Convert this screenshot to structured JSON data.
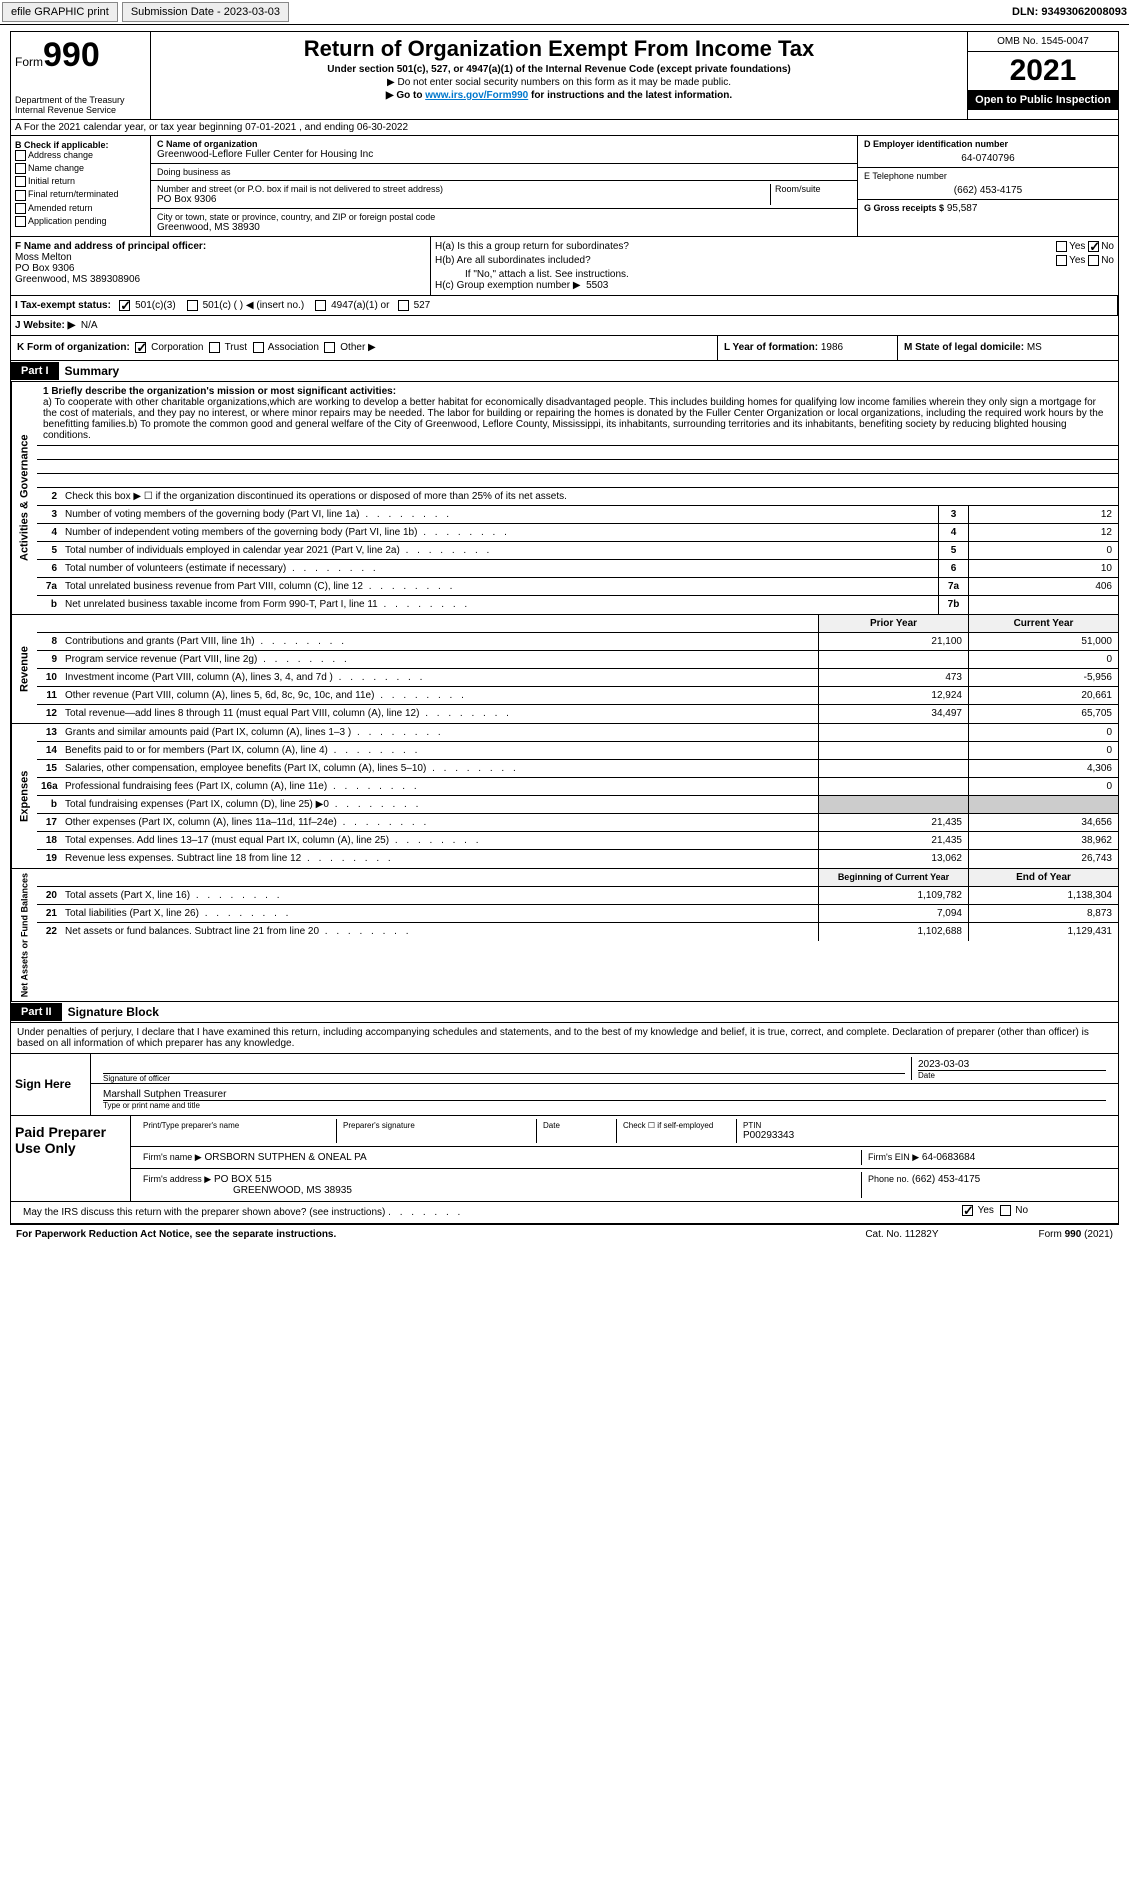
{
  "top": {
    "efile": "efile GRAPHIC print",
    "sub_label": "Submission Date - 2023-03-03",
    "dln": "DLN: 93493062008093"
  },
  "header": {
    "form_word": "Form",
    "form_num": "990",
    "dept": "Department of the Treasury",
    "irs": "Internal Revenue Service",
    "title": "Return of Organization Exempt From Income Tax",
    "sub1": "Under section 501(c), 527, or 4947(a)(1) of the Internal Revenue Code (except private foundations)",
    "sub2": "▶ Do not enter social security numbers on this form as it may be made public.",
    "sub3_pre": "▶ Go to ",
    "sub3_link": "www.irs.gov/Form990",
    "sub3_post": " for instructions and the latest information.",
    "omb": "OMB No. 1545-0047",
    "year": "2021",
    "inspect": "Open to Public Inspection"
  },
  "rowA": "A For the 2021 calendar year, or tax year beginning 07-01-2021   , and ending 06-30-2022",
  "colB": {
    "label": "B Check if applicable:",
    "items": [
      "Address change",
      "Name change",
      "Initial return",
      "Final return/terminated",
      "Amended return",
      "Application pending"
    ]
  },
  "colC": {
    "name_label": "C Name of organization",
    "name": "Greenwood-Leflore Fuller Center for Housing Inc",
    "dba_label": "Doing business as",
    "dba": "",
    "street_label": "Number and street (or P.O. box if mail is not delivered to street address)",
    "street": "PO Box 9306",
    "room_label": "Room/suite",
    "room": "",
    "city_label": "City or town, state or province, country, and ZIP or foreign postal code",
    "city": "Greenwood, MS  38930"
  },
  "colD": {
    "ein_label": "D Employer identification number",
    "ein": "64-0740796",
    "phone_label": "E Telephone number",
    "phone": "(662) 453-4175",
    "gross_label": "G Gross receipts $",
    "gross": "95,587"
  },
  "colF": {
    "label": "F  Name and address of principal officer:",
    "name": "Moss Melton",
    "street": "PO Box 9306",
    "city": "Greenwood, MS  389308906"
  },
  "colH": {
    "a_label": "H(a)  Is this a group return for subordinates?",
    "a_yes": "Yes",
    "a_no": "No",
    "b_label": "H(b)  Are all subordinates included?",
    "b_yes": "Yes",
    "b_no": "No",
    "b_note": "If \"No,\" attach a list. See instructions.",
    "c_label": "H(c)  Group exemption number ▶",
    "c_val": "5503"
  },
  "taxI": {
    "label": "I  Tax-exempt status:",
    "opt1": "501(c)(3)",
    "opt2": "501(c) (   ) ◀ (insert no.)",
    "opt3": "4947(a)(1) or",
    "opt4": "527"
  },
  "rowJ": {
    "label": "J  Website: ▶",
    "val": "N/A"
  },
  "rowK": {
    "label": "K Form of organization:",
    "opts": [
      "Corporation",
      "Trust",
      "Association",
      "Other ▶"
    ]
  },
  "rowL": {
    "label": "L Year of formation:",
    "val": "1986"
  },
  "rowM": {
    "label": "M State of legal domicile:",
    "val": "MS"
  },
  "part1": {
    "hdr": "Part I",
    "title": "Summary"
  },
  "mission": {
    "label": "1  Briefly describe the organization's mission or most significant activities:",
    "text": "a) To cooperate with other charitable organizations,which are working to develop a better habitat for economically disadvantaged people. This includes building homes for qualifying low income families wherein they only sign a mortgage for the cost of materials, and they pay no interest, or where minor repairs may be needed. The labor for building or repairing the homes is donated by the Fuller Center Organization or local organizations, including the required work hours by the benefitting families.b) To promote the common good and general welfare of the City of Greenwood, Leflore County, Mississippi, its inhabitants, surrounding territories and its inhabitants, benefiting society by reducing blighted housing conditions."
  },
  "governance": {
    "side": "Activities & Governance",
    "line2": "Check this box ▶ ☐ if the organization discontinued its operations or disposed of more than 25% of its net assets.",
    "rows": [
      {
        "n": "3",
        "d": "Number of voting members of the governing body (Part VI, line 1a)",
        "box": "3",
        "v": "12"
      },
      {
        "n": "4",
        "d": "Number of independent voting members of the governing body (Part VI, line 1b)",
        "box": "4",
        "v": "12"
      },
      {
        "n": "5",
        "d": "Total number of individuals employed in calendar year 2021 (Part V, line 2a)",
        "box": "5",
        "v": "0"
      },
      {
        "n": "6",
        "d": "Total number of volunteers (estimate if necessary)",
        "box": "6",
        "v": "10"
      },
      {
        "n": "7a",
        "d": "Total unrelated business revenue from Part VIII, column (C), line 12",
        "box": "7a",
        "v": "406"
      },
      {
        "n": "b",
        "d": "Net unrelated business taxable income from Form 990-T, Part I, line 11",
        "box": "7b",
        "v": ""
      }
    ]
  },
  "revenue": {
    "side": "Revenue",
    "hdr_prior": "Prior Year",
    "hdr_curr": "Current Year",
    "rows": [
      {
        "n": "8",
        "d": "Contributions and grants (Part VIII, line 1h)",
        "p": "21,100",
        "c": "51,000"
      },
      {
        "n": "9",
        "d": "Program service revenue (Part VIII, line 2g)",
        "p": "",
        "c": "0"
      },
      {
        "n": "10",
        "d": "Investment income (Part VIII, column (A), lines 3, 4, and 7d )",
        "p": "473",
        "c": "-5,956"
      },
      {
        "n": "11",
        "d": "Other revenue (Part VIII, column (A), lines 5, 6d, 8c, 9c, 10c, and 11e)",
        "p": "12,924",
        "c": "20,661"
      },
      {
        "n": "12",
        "d": "Total revenue—add lines 8 through 11 (must equal Part VIII, column (A), line 12)",
        "p": "34,497",
        "c": "65,705"
      }
    ]
  },
  "expenses": {
    "side": "Expenses",
    "rows": [
      {
        "n": "13",
        "d": "Grants and similar amounts paid (Part IX, column (A), lines 1–3 )",
        "p": "",
        "c": "0"
      },
      {
        "n": "14",
        "d": "Benefits paid to or for members (Part IX, column (A), line 4)",
        "p": "",
        "c": "0"
      },
      {
        "n": "15",
        "d": "Salaries, other compensation, employee benefits (Part IX, column (A), lines 5–10)",
        "p": "",
        "c": "4,306"
      },
      {
        "n": "16a",
        "d": "Professional fundraising fees (Part IX, column (A), line 11e)",
        "p": "",
        "c": "0"
      },
      {
        "n": "b",
        "d": "Total fundraising expenses (Part IX, column (D), line 25) ▶0",
        "p": "grey",
        "c": "grey"
      },
      {
        "n": "17",
        "d": "Other expenses (Part IX, column (A), lines 11a–11d, 11f–24e)",
        "p": "21,435",
        "c": "34,656"
      },
      {
        "n": "18",
        "d": "Total expenses. Add lines 13–17 (must equal Part IX, column (A), line 25)",
        "p": "21,435",
        "c": "38,962"
      },
      {
        "n": "19",
        "d": "Revenue less expenses. Subtract line 18 from line 12",
        "p": "13,062",
        "c": "26,743"
      }
    ]
  },
  "netassets": {
    "side": "Net Assets or Fund Balances",
    "hdr_beg": "Beginning of Current Year",
    "hdr_end": "End of Year",
    "rows": [
      {
        "n": "20",
        "d": "Total assets (Part X, line 16)",
        "p": "1,109,782",
        "c": "1,138,304"
      },
      {
        "n": "21",
        "d": "Total liabilities (Part X, line 26)",
        "p": "7,094",
        "c": "8,873"
      },
      {
        "n": "22",
        "d": "Net assets or fund balances. Subtract line 21 from line 20",
        "p": "1,102,688",
        "c": "1,129,431"
      }
    ]
  },
  "part2": {
    "hdr": "Part II",
    "title": "Signature Block"
  },
  "sig": {
    "penalty": "Under penalties of perjury, I declare that I have examined this return, including accompanying schedules and statements, and to the best of my knowledge and belief, it is true, correct, and complete. Declaration of preparer (other than officer) is based on all information of which preparer has any knowledge.",
    "sign_here": "Sign Here",
    "sig_officer": "Signature of officer",
    "date_label": "Date",
    "date": "2023-03-03",
    "name": "Marshall Sutphen  Treasurer",
    "type_name": "Type or print name and title"
  },
  "prep": {
    "label": "Paid Preparer Use Only",
    "print_label": "Print/Type preparer's name",
    "print": "",
    "sig_label": "Preparer's signature",
    "date_label": "Date",
    "self_label": "Check ☐ if self-employed",
    "ptin_label": "PTIN",
    "ptin": "P00293343",
    "firm_name_label": "Firm's name    ▶",
    "firm_name": "ORSBORN SUTPHEN & ONEAL PA",
    "firm_ein_label": "Firm's EIN ▶",
    "firm_ein": "64-0683684",
    "firm_addr_label": "Firm's address ▶",
    "firm_addr": "PO BOX 515",
    "firm_city": "GREENWOOD, MS  38935",
    "firm_phone_label": "Phone no.",
    "firm_phone": "(662) 453-4175"
  },
  "discuss": {
    "label": "May the IRS discuss this return with the preparer shown above? (see instructions)",
    "yes": "Yes",
    "no": "No"
  },
  "footer": {
    "left": "For Paperwork Reduction Act Notice, see the separate instructions.",
    "mid": "Cat. No. 11282Y",
    "right": "Form 990 (2021)"
  }
}
